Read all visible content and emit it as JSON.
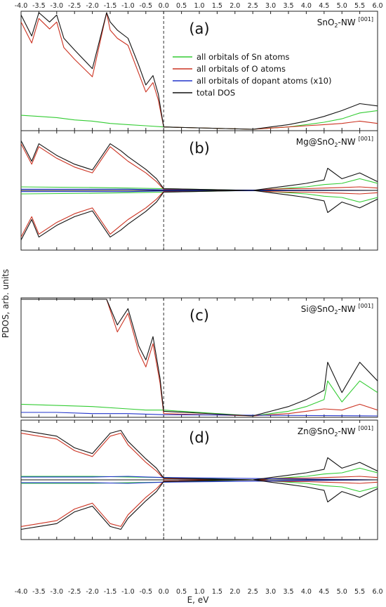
{
  "chart_data": [
    {
      "type": "line",
      "panel_letter": "(a)",
      "label_main": "SnO",
      "label_sub": "2",
      "label_rest": "-NW",
      "label_sup": "[001]",
      "spin_polarized": false,
      "series": [
        {
          "name": "all orbitals of Sn atoms",
          "color": "#33cc33",
          "points": [
            [
              -4.0,
              0.12
            ],
            [
              -3.5,
              0.11
            ],
            [
              -3.0,
              0.1
            ],
            [
              -2.5,
              0.08
            ],
            [
              -2.0,
              0.07
            ],
            [
              -1.5,
              0.05
            ],
            [
              -1.0,
              0.04
            ],
            [
              -0.5,
              0.03
            ],
            [
              0.0,
              0.02
            ],
            [
              2.5,
              0.0
            ],
            [
              3.0,
              0.01
            ],
            [
              3.5,
              0.02
            ],
            [
              4.0,
              0.04
            ],
            [
              4.5,
              0.06
            ],
            [
              5.0,
              0.09
            ],
            [
              5.5,
              0.14
            ],
            [
              6.0,
              0.16
            ]
          ]
        },
        {
          "name": "all orbitals of O atoms",
          "color": "#cc3322",
          "points": [
            [
              -4.0,
              0.92
            ],
            [
              -3.7,
              0.74
            ],
            [
              -3.5,
              0.95
            ],
            [
              -3.2,
              0.86
            ],
            [
              -3.0,
              0.92
            ],
            [
              -2.8,
              0.7
            ],
            [
              -2.5,
              0.6
            ],
            [
              -2.0,
              0.45
            ],
            [
              -1.6,
              1.0
            ],
            [
              -1.5,
              0.85
            ],
            [
              -1.3,
              0.78
            ],
            [
              -1.0,
              0.72
            ],
            [
              -0.7,
              0.48
            ],
            [
              -0.5,
              0.32
            ],
            [
              -0.3,
              0.4
            ],
            [
              -0.15,
              0.25
            ],
            [
              0.0,
              0.02
            ],
            [
              2.5,
              0.0
            ],
            [
              3.0,
              0.01
            ],
            [
              3.5,
              0.02
            ],
            [
              4.0,
              0.03
            ],
            [
              4.5,
              0.04
            ],
            [
              5.0,
              0.05
            ],
            [
              5.5,
              0.07
            ],
            [
              6.0,
              0.05
            ]
          ]
        },
        {
          "name": "all orbitals of dopant atoms (x10)",
          "color": "#2233cc",
          "points": []
        },
        {
          "name": "total DOS",
          "color": "#111111",
          "points": [
            [
              -4.0,
              0.98
            ],
            [
              -3.7,
              0.8
            ],
            [
              -3.5,
              1.0
            ],
            [
              -3.2,
              0.92
            ],
            [
              -3.0,
              0.98
            ],
            [
              -2.8,
              0.78
            ],
            [
              -2.5,
              0.68
            ],
            [
              -2.0,
              0.52
            ],
            [
              -1.6,
              1.0
            ],
            [
              -1.5,
              0.92
            ],
            [
              -1.3,
              0.85
            ],
            [
              -1.0,
              0.78
            ],
            [
              -0.7,
              0.55
            ],
            [
              -0.5,
              0.38
            ],
            [
              -0.3,
              0.46
            ],
            [
              -0.15,
              0.3
            ],
            [
              0.0,
              0.02
            ],
            [
              2.5,
              0.0
            ],
            [
              3.0,
              0.02
            ],
            [
              3.5,
              0.04
            ],
            [
              4.0,
              0.07
            ],
            [
              4.5,
              0.11
            ],
            [
              5.0,
              0.16
            ],
            [
              5.5,
              0.22
            ],
            [
              6.0,
              0.2
            ]
          ]
        }
      ]
    },
    {
      "type": "line",
      "panel_letter": "(b)",
      "label_main": "Mg@SnO",
      "label_sub": "2",
      "label_rest": "-NW",
      "label_sup": "[001]",
      "spin_polarized": true,
      "series": [
        {
          "name": "all orbitals of Sn atoms",
          "color": "#33cc33",
          "points": [
            [
              -4.0,
              0.06
            ],
            [
              -2.0,
              0.05
            ],
            [
              -1.0,
              0.04
            ],
            [
              0.0,
              0.03
            ],
            [
              2.5,
              0.0
            ],
            [
              3.0,
              0.02
            ],
            [
              3.5,
              0.04
            ],
            [
              4.0,
              0.06
            ],
            [
              4.5,
              0.1
            ],
            [
              5.0,
              0.12
            ],
            [
              5.5,
              0.2
            ],
            [
              6.0,
              0.12
            ]
          ]
        },
        {
          "name": "all orbitals of O atoms",
          "color": "#cc3322",
          "points": [
            [
              -4.0,
              0.8
            ],
            [
              -3.7,
              0.45
            ],
            [
              -3.5,
              0.75
            ],
            [
              -3.0,
              0.55
            ],
            [
              -2.5,
              0.4
            ],
            [
              -2.0,
              0.3
            ],
            [
              -1.5,
              0.75
            ],
            [
              -1.2,
              0.6
            ],
            [
              -1.0,
              0.5
            ],
            [
              -0.5,
              0.3
            ],
            [
              -0.2,
              0.15
            ],
            [
              0.0,
              0.02
            ],
            [
              2.5,
              0.0
            ],
            [
              3.0,
              0.02
            ],
            [
              3.5,
              0.03
            ],
            [
              4.0,
              0.03
            ],
            [
              4.5,
              0.04
            ],
            [
              5.0,
              0.05
            ],
            [
              5.5,
              0.06
            ],
            [
              6.0,
              0.04
            ]
          ]
        },
        {
          "name": "all orbitals of dopant atoms (x10)",
          "color": "#2233cc",
          "points": [
            [
              -4.0,
              0.02
            ],
            [
              -2.0,
              0.02
            ],
            [
              -1.0,
              0.02
            ],
            [
              0.0,
              0.01
            ],
            [
              6.0,
              0.0
            ]
          ]
        },
        {
          "name": "total DOS",
          "color": "#111111",
          "points": [
            [
              -4.0,
              0.85
            ],
            [
              -3.7,
              0.5
            ],
            [
              -3.5,
              0.8
            ],
            [
              -3.0,
              0.6
            ],
            [
              -2.5,
              0.45
            ],
            [
              -2.0,
              0.35
            ],
            [
              -1.5,
              0.8
            ],
            [
              -1.2,
              0.68
            ],
            [
              -1.0,
              0.58
            ],
            [
              -0.5,
              0.36
            ],
            [
              -0.2,
              0.2
            ],
            [
              0.0,
              0.03
            ],
            [
              2.5,
              0.0
            ],
            [
              3.0,
              0.04
            ],
            [
              3.5,
              0.08
            ],
            [
              4.0,
              0.12
            ],
            [
              4.5,
              0.18
            ],
            [
              4.6,
              0.38
            ],
            [
              5.0,
              0.2
            ],
            [
              5.5,
              0.3
            ],
            [
              6.0,
              0.15
            ]
          ]
        }
      ]
    },
    {
      "type": "line",
      "panel_letter": "(c)",
      "label_main": "Si@SnO",
      "label_sub": "2",
      "label_rest": "-NW",
      "label_sup": "[001]",
      "spin_polarized": false,
      "series": [
        {
          "name": "all orbitals of Sn atoms",
          "color": "#33cc33",
          "points": [
            [
              -4.0,
              0.1
            ],
            [
              -3.0,
              0.09
            ],
            [
              -2.0,
              0.08
            ],
            [
              -1.0,
              0.06
            ],
            [
              -0.5,
              0.05
            ],
            [
              0.0,
              0.05
            ],
            [
              2.5,
              0.0
            ],
            [
              3.0,
              0.02
            ],
            [
              3.5,
              0.04
            ],
            [
              4.0,
              0.08
            ],
            [
              4.5,
              0.14
            ],
            [
              4.6,
              0.3
            ],
            [
              5.0,
              0.12
            ],
            [
              5.5,
              0.3
            ],
            [
              6.0,
              0.2
            ]
          ]
        },
        {
          "name": "all orbitals of O atoms",
          "color": "#cc3322",
          "points": [
            [
              -4.0,
              1.0
            ],
            [
              -1.6,
              1.0
            ],
            [
              -1.3,
              0.72
            ],
            [
              -1.0,
              0.88
            ],
            [
              -0.7,
              0.55
            ],
            [
              -0.5,
              0.42
            ],
            [
              -0.3,
              0.62
            ],
            [
              -0.1,
              0.28
            ],
            [
              0.0,
              0.02
            ],
            [
              2.5,
              0.0
            ],
            [
              3.0,
              0.01
            ],
            [
              3.5,
              0.02
            ],
            [
              4.0,
              0.04
            ],
            [
              4.5,
              0.06
            ],
            [
              5.0,
              0.05
            ],
            [
              5.5,
              0.1
            ],
            [
              6.0,
              0.05
            ]
          ]
        },
        {
          "name": "all orbitals of dopant atoms (x10)",
          "color": "#2233cc",
          "points": [
            [
              -4.0,
              0.03
            ],
            [
              -3.0,
              0.03
            ],
            [
              -2.0,
              0.02
            ],
            [
              -1.0,
              0.02
            ],
            [
              0.0,
              0.01
            ],
            [
              6.0,
              0.0
            ]
          ]
        },
        {
          "name": "total DOS",
          "color": "#111111",
          "points": [
            [
              -4.0,
              1.0
            ],
            [
              -1.6,
              1.0
            ],
            [
              -1.3,
              0.78
            ],
            [
              -1.0,
              0.92
            ],
            [
              -0.7,
              0.6
            ],
            [
              -0.5,
              0.48
            ],
            [
              -0.3,
              0.68
            ],
            [
              -0.1,
              0.32
            ],
            [
              0.0,
              0.04
            ],
            [
              2.5,
              0.0
            ],
            [
              3.0,
              0.04
            ],
            [
              3.5,
              0.08
            ],
            [
              4.0,
              0.14
            ],
            [
              4.5,
              0.22
            ],
            [
              4.6,
              0.46
            ],
            [
              5.0,
              0.2
            ],
            [
              5.5,
              0.46
            ],
            [
              6.0,
              0.3
            ]
          ]
        }
      ]
    },
    {
      "type": "line",
      "panel_letter": "(d)",
      "label_main": "Zn@SnO",
      "label_sub": "2",
      "label_rest": "-NW",
      "label_sup": "[001]",
      "spin_polarized": true,
      "series": [
        {
          "name": "all orbitals of Sn atoms",
          "color": "#33cc33",
          "points": [
            [
              -4.0,
              0.06
            ],
            [
              -2.0,
              0.06
            ],
            [
              -1.0,
              0.05
            ],
            [
              0.0,
              0.04
            ],
            [
              2.5,
              0.0
            ],
            [
              3.0,
              0.02
            ],
            [
              3.5,
              0.04
            ],
            [
              4.0,
              0.06
            ],
            [
              4.5,
              0.1
            ],
            [
              5.0,
              0.12
            ],
            [
              5.5,
              0.2
            ],
            [
              6.0,
              0.12
            ]
          ]
        },
        {
          "name": "all orbitals of O atoms",
          "color": "#cc3322",
          "points": [
            [
              -4.0,
              0.8
            ],
            [
              -3.5,
              0.75
            ],
            [
              -3.0,
              0.7
            ],
            [
              -2.5,
              0.5
            ],
            [
              -2.0,
              0.4
            ],
            [
              -1.5,
              0.75
            ],
            [
              -1.2,
              0.8
            ],
            [
              -1.0,
              0.6
            ],
            [
              -0.5,
              0.3
            ],
            [
              -0.2,
              0.15
            ],
            [
              0.0,
              0.02
            ],
            [
              2.5,
              0.0
            ],
            [
              3.0,
              0.02
            ],
            [
              3.5,
              0.03
            ],
            [
              4.0,
              0.03
            ],
            [
              4.5,
              0.04
            ],
            [
              5.0,
              0.05
            ],
            [
              5.5,
              0.06
            ],
            [
              6.0,
              0.04
            ]
          ]
        },
        {
          "name": "all orbitals of dopant atoms (x10)",
          "color": "#2233cc",
          "points": [
            [
              -4.0,
              0.05
            ],
            [
              -3.0,
              0.05
            ],
            [
              -2.0,
              0.05
            ],
            [
              -1.0,
              0.06
            ],
            [
              -0.5,
              0.05
            ],
            [
              0.0,
              0.04
            ],
            [
              6.0,
              0.0
            ]
          ]
        },
        {
          "name": "total DOS",
          "color": "#111111",
          "points": [
            [
              -4.0,
              0.85
            ],
            [
              -3.5,
              0.8
            ],
            [
              -3.0,
              0.75
            ],
            [
              -2.5,
              0.55
            ],
            [
              -2.0,
              0.45
            ],
            [
              -1.5,
              0.8
            ],
            [
              -1.2,
              0.85
            ],
            [
              -1.0,
              0.66
            ],
            [
              -0.5,
              0.36
            ],
            [
              -0.2,
              0.2
            ],
            [
              0.0,
              0.03
            ],
            [
              2.5,
              0.0
            ],
            [
              3.0,
              0.04
            ],
            [
              3.5,
              0.08
            ],
            [
              4.0,
              0.12
            ],
            [
              4.5,
              0.18
            ],
            [
              4.6,
              0.38
            ],
            [
              5.0,
              0.2
            ],
            [
              5.5,
              0.3
            ],
            [
              6.0,
              0.15
            ]
          ]
        }
      ]
    }
  ],
  "axes": {
    "xlim": [
      -4.0,
      6.0
    ],
    "x_ticks": [
      "-4.0",
      "-3.5",
      "-3.0",
      "-2.5",
      "-2.0",
      "-1.5",
      "-1.0",
      "-0.5",
      "0.0",
      "0.5",
      "1.0",
      "1.5",
      "2.0",
      "2.5",
      "3.0",
      "3.5",
      "4.0",
      "4.5",
      "5.0",
      "5.5",
      "6.0"
    ],
    "xlabel": "E, eV",
    "ylabel": "PDOS, arb. units",
    "fermi_level": 0.0
  },
  "legend": [
    {
      "name": "all orbitals of Sn atoms",
      "color": "#33cc33"
    },
    {
      "name": "all orbitals of O atoms",
      "color": "#cc3322"
    },
    {
      "name": "all orbitals of dopant atoms (x10)",
      "color": "#2233cc"
    },
    {
      "name": "total DOS",
      "color": "#111111"
    }
  ]
}
